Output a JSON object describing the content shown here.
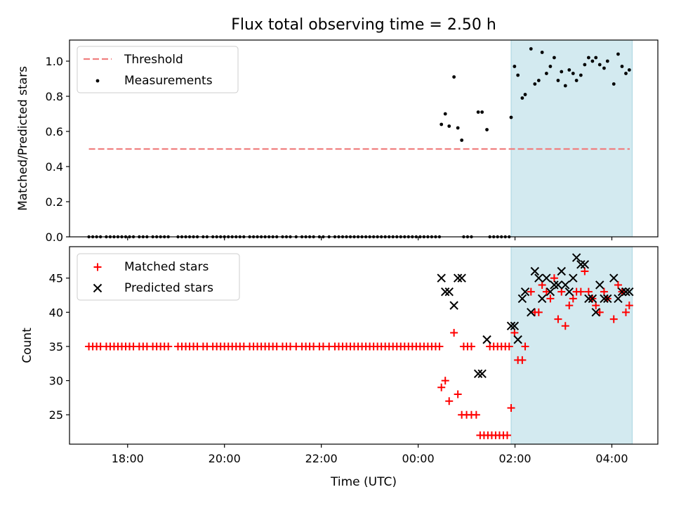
{
  "chart_data": {
    "title": "Flux total observing time = 2.50 h",
    "xlabel": "Time (UTC)",
    "x_unit": "hours since 00:00 UTC",
    "xlim": [
      -7.2,
      4.95
    ],
    "xticks": [
      {
        "value": -6,
        "label": "18:00"
      },
      {
        "value": -4,
        "label": "20:00"
      },
      {
        "value": -2,
        "label": "22:00"
      },
      {
        "value": 0,
        "label": "00:00"
      },
      {
        "value": 2,
        "label": "02:00"
      },
      {
        "value": 4,
        "label": "04:00"
      }
    ],
    "highlight_span": [
      1.92,
      4.42
    ],
    "colors": {
      "highlight": "#d3eaf0",
      "highlight_edge": "#a8d4e0",
      "threshold": "#f08080",
      "measurements": "#000000",
      "matched": "#ff0000",
      "predicted": "#000000"
    },
    "charts": [
      {
        "type": "scatter",
        "ylabel": "Matched/Predicted stars",
        "ylim": [
          0,
          1.12
        ],
        "yticks": [
          {
            "value": 0.0,
            "label": "0.0"
          },
          {
            "value": 0.2,
            "label": "0.2"
          },
          {
            "value": 0.4,
            "label": "0.4"
          },
          {
            "value": 0.6,
            "label": "0.6"
          },
          {
            "value": 0.8,
            "label": "0.8"
          },
          {
            "value": 1.0,
            "label": "1.0"
          }
        ],
        "legend": {
          "position": "top-left",
          "entries": [
            {
              "name": "Threshold",
              "marker": "dashed-line"
            },
            {
              "name": "Measurements",
              "marker": "dot"
            }
          ]
        },
        "threshold": {
          "name": "Threshold",
          "y": 0.5,
          "x_range": [
            -6.8,
            4.37
          ]
        },
        "zero_times": [
          -6.8,
          -6.72,
          -6.64,
          -6.56,
          -6.44,
          -6.36,
          -6.28,
          -6.2,
          -6.12,
          -6.04,
          -5.96,
          -5.88,
          -5.76,
          -5.68,
          -5.6,
          -5.48,
          -5.4,
          -5.32,
          -5.24,
          -5.16,
          -4.96,
          -4.88,
          -4.8,
          -4.72,
          -4.64,
          -4.56,
          -4.44,
          -4.36,
          -4.24,
          -4.16,
          -4.08,
          -4,
          -3.92,
          -3.84,
          -3.76,
          -3.68,
          -3.6,
          -3.48,
          -3.4,
          -3.32,
          -3.24,
          -3.16,
          -3.08,
          -3,
          -2.92,
          -2.8,
          -2.72,
          -2.64,
          -2.52,
          -2.4,
          -2.32,
          -2.24,
          -2.16,
          -2.04,
          -1.96,
          -1.84,
          -1.72,
          -1.64,
          -1.56,
          -1.48,
          -1.4,
          -1.32,
          -1.24,
          -1.16,
          -1.08,
          -1,
          -0.92,
          -0.84,
          -0.76,
          -0.68,
          -0.6,
          -0.52,
          -0.44,
          -0.36,
          -0.28,
          -0.2,
          -0.12,
          -0.04,
          0.04,
          0.12,
          0.2,
          0.28,
          0.36,
          0.44,
          0.94,
          1.02,
          1.1,
          1.48,
          1.56,
          1.64,
          1.72,
          1.8,
          1.88
        ],
        "measurements": {
          "x": [
            0.48,
            0.56,
            0.64,
            0.74,
            0.82,
            0.9,
            1.24,
            1.32,
            1.42,
            1.92,
            1.99,
            2.06,
            2.15,
            2.21,
            2.33,
            2.41,
            2.49,
            2.56,
            2.65,
            2.73,
            2.81,
            2.89,
            2.96,
            3.04,
            3.12,
            3.2,
            3.27,
            3.36,
            3.44,
            3.52,
            3.6,
            3.67,
            3.75,
            3.84,
            3.91,
            4.04,
            4.13,
            4.21,
            4.29,
            4.36
          ],
          "y": [
            0.64,
            0.7,
            0.63,
            0.91,
            0.62,
            0.55,
            0.71,
            0.71,
            0.61,
            0.68,
            0.97,
            0.92,
            0.79,
            0.81,
            1.07,
            0.87,
            0.89,
            1.05,
            0.93,
            0.97,
            1.02,
            0.89,
            0.94,
            0.86,
            0.95,
            0.93,
            0.89,
            0.92,
            0.98,
            1.02,
            1.0,
            1.02,
            0.98,
            0.96,
            1.0,
            0.87,
            1.04,
            0.97,
            0.93,
            0.95
          ]
        }
      },
      {
        "type": "scatter",
        "ylabel": "Count",
        "ylim": [
          20.7,
          49.6
        ],
        "yticks": [
          {
            "value": 25,
            "label": "25"
          },
          {
            "value": 30,
            "label": "30"
          },
          {
            "value": 35,
            "label": "35"
          },
          {
            "value": 40,
            "label": "40"
          },
          {
            "value": 45,
            "label": "45"
          }
        ],
        "legend": {
          "position": "top-left",
          "entries": [
            {
              "name": "Matched stars",
              "marker": "plus"
            },
            {
              "name": "Predicted stars",
              "marker": "x"
            }
          ]
        },
        "baseline_value": 35,
        "series": [
          {
            "name": "Matched stars",
            "x": [
              0.48,
              0.56,
              0.64,
              0.74,
              0.82,
              0.9,
              1.0,
              1.1,
              1.2,
              1.28,
              1.36,
              1.44,
              1.52,
              1.6,
              1.68,
              1.76,
              1.84,
              1.92,
              1.99,
              2.06,
              2.15,
              2.21,
              2.33,
              2.41,
              2.49,
              2.56,
              2.65,
              2.73,
              2.81,
              2.89,
              2.96,
              3.04,
              3.12,
              3.2,
              3.27,
              3.36,
              3.44,
              3.52,
              3.6,
              3.67,
              3.75,
              3.84,
              3.91,
              4.04,
              4.13,
              4.21,
              4.29,
              4.36
            ],
            "y": [
              29,
              30,
              27,
              37,
              28,
              25,
              25,
              25,
              25,
              22,
              22,
              22,
              22,
              22,
              22,
              22,
              22,
              26,
              37,
              33,
              33,
              35,
              43,
              40,
              40,
              44,
              43,
              42,
              45,
              39,
              43,
              38,
              41,
              42,
              43,
              43,
              46,
              43,
              42,
              41,
              40,
              43,
              42,
              39,
              44,
              43,
              40,
              41
            ]
          },
          {
            "name": "Predicted stars",
            "x": [
              0.48,
              0.56,
              0.64,
              0.74,
              0.82,
              0.9,
              1.24,
              1.32,
              1.42,
              1.92,
              1.99,
              2.06,
              2.15,
              2.21,
              2.33,
              2.41,
              2.49,
              2.56,
              2.65,
              2.73,
              2.81,
              2.89,
              2.96,
              3.04,
              3.12,
              3.2,
              3.27,
              3.36,
              3.44,
              3.52,
              3.6,
              3.67,
              3.75,
              3.84,
              3.91,
              4.04,
              4.13,
              4.21,
              4.29,
              4.36
            ],
            "y": [
              45,
              43,
              43,
              41,
              45,
              45,
              31,
              31,
              36,
              38,
              38,
              36,
              42,
              43,
              40,
              46,
              45,
              42,
              45,
              43,
              44,
              44,
              46,
              44,
              43,
              45,
              48,
              47,
              47,
              42,
              42,
              40,
              44,
              42,
              42,
              45,
              42,
              43,
              43,
              43
            ]
          }
        ]
      }
    ]
  }
}
